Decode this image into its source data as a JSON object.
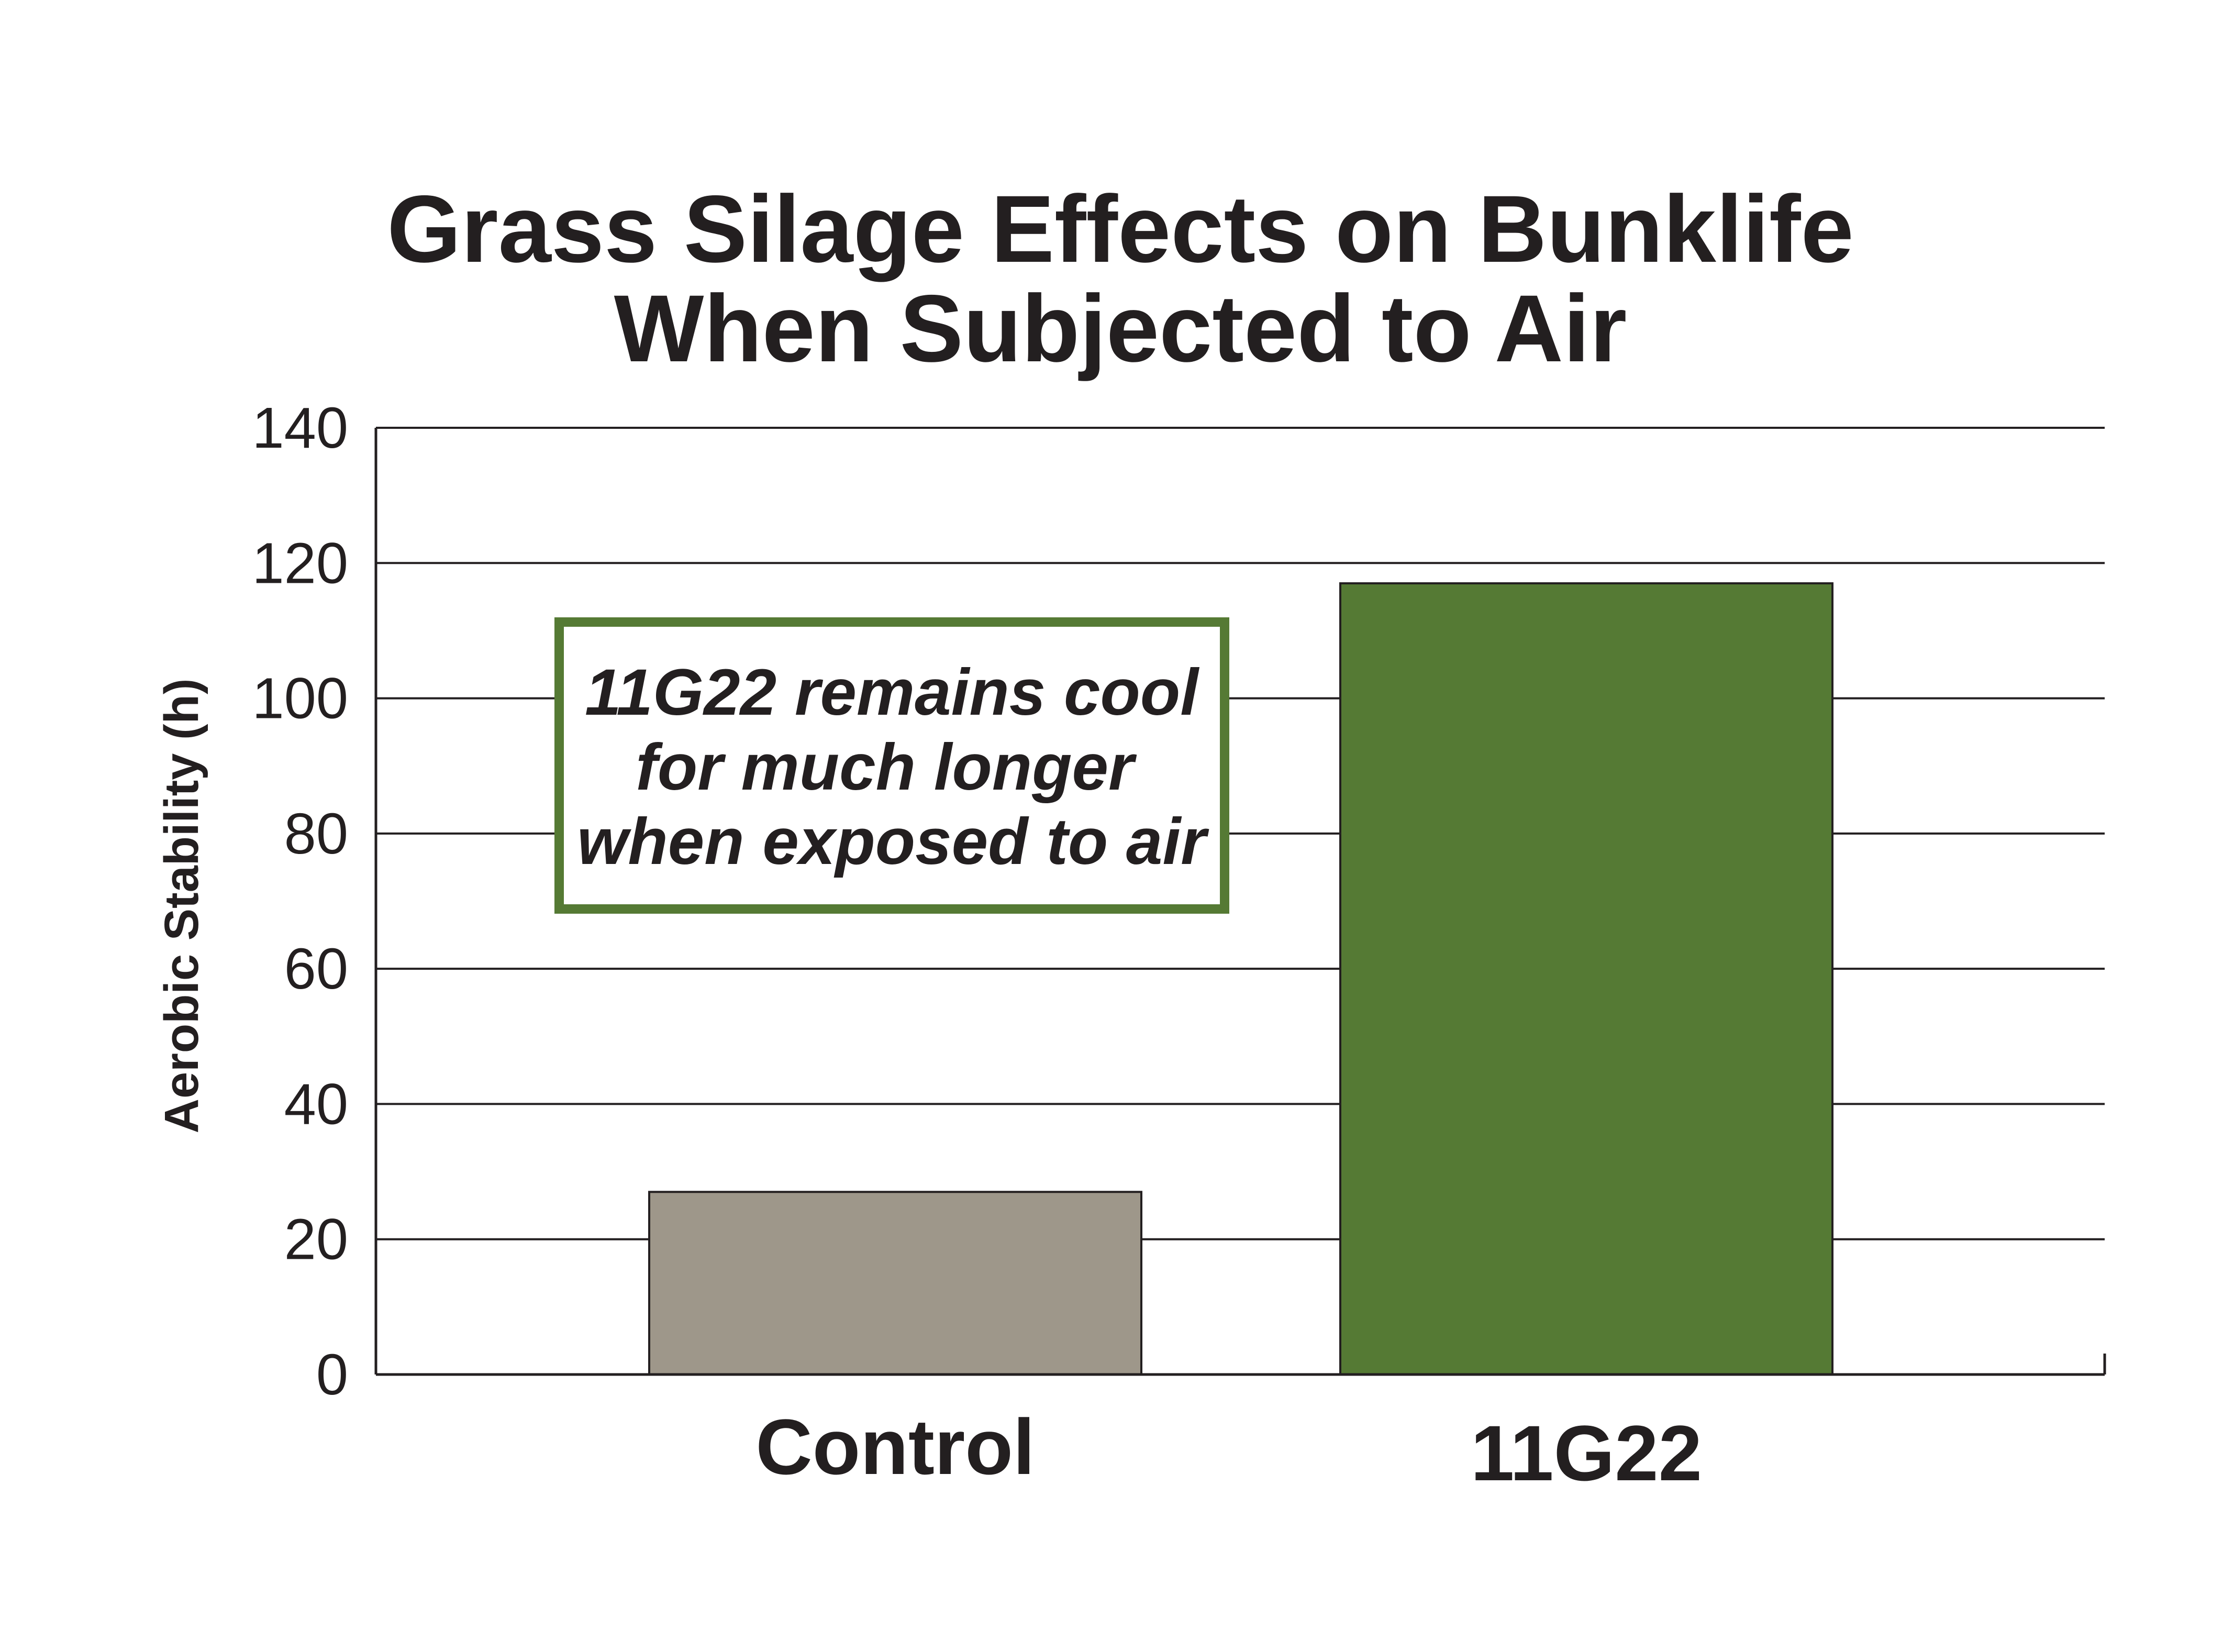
{
  "chart_data": {
    "type": "bar",
    "title_lines": [
      "Grass Silage Effects on Bunklife",
      "When Subjected to Air"
    ],
    "ylabel": "Aerobic Stability (h)",
    "xlabel": "",
    "categories": [
      "Control",
      "11G22"
    ],
    "values": [
      27,
      117
    ],
    "bar_colors": [
      "#9e978a",
      "#557a34"
    ],
    "ylim": [
      0,
      140
    ],
    "yticks": [
      "0",
      "20",
      "40",
      "60",
      "80",
      "100",
      "120",
      "140"
    ],
    "grid": true,
    "annotation": {
      "lines": [
        "11G22 remains cool",
        "for much longer",
        "when exposed to air"
      ],
      "border_color": "#557a34"
    }
  }
}
